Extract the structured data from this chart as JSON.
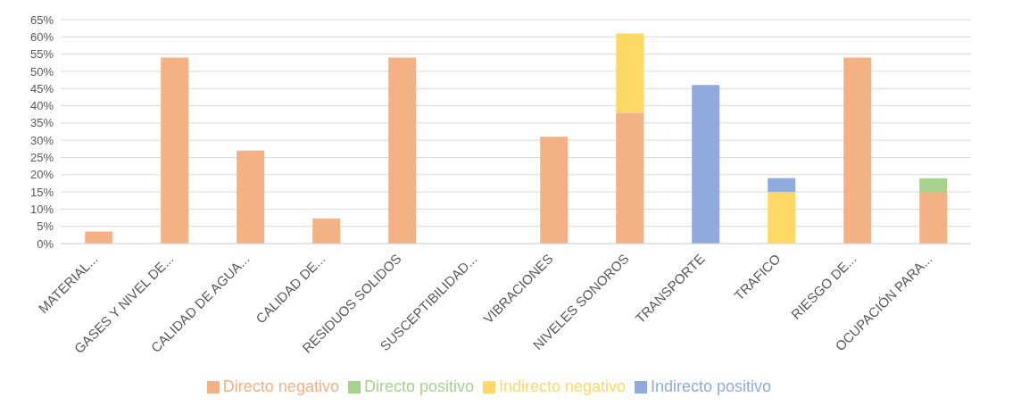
{
  "chart_data": {
    "type": "bar",
    "stacked": true,
    "categories": [
      "MATERIAL...",
      "GASES Y NIVEL DE...",
      "CALIDAD DE AGUA...",
      "CALIDAD DE...",
      "RESIDUOS SOLIDOS",
      "SUSCEPTIBILIDAD...",
      "VIBRACIONES",
      "NIVELES SONOROS",
      "TRANSPORTE",
      "TRAFICO",
      "RIESGO DE...",
      "OCUPACIÓN PARA..."
    ],
    "series": [
      {
        "name": "Directo negativo",
        "color": "#f4b183",
        "values": [
          3.5,
          54,
          27,
          7.3,
          54,
          null,
          31,
          38,
          null,
          null,
          54,
          15
        ]
      },
      {
        "name": "Directo positivo",
        "color": "#a9d18e",
        "values": [
          null,
          null,
          null,
          null,
          null,
          null,
          null,
          null,
          null,
          null,
          null,
          4
        ]
      },
      {
        "name": "Indirecto negativo",
        "color": "#ffd966",
        "values": [
          null,
          null,
          null,
          null,
          null,
          null,
          null,
          23,
          null,
          15,
          null,
          null
        ]
      },
      {
        "name": "Indirecto positivo",
        "color": "#8faadc",
        "values": [
          null,
          null,
          null,
          null,
          null,
          null,
          null,
          null,
          46,
          4,
          null,
          null
        ]
      }
    ],
    "ylim": [
      0,
      65
    ],
    "yticks": [
      {
        "value": 0,
        "label": "0%"
      },
      {
        "value": 5,
        "label": "5%"
      },
      {
        "value": 10,
        "label": "10%"
      },
      {
        "value": 15,
        "label": "15%"
      },
      {
        "value": 20,
        "label": "20%"
      },
      {
        "value": 25,
        "label": "25%"
      },
      {
        "value": 30,
        "label": "30%"
      },
      {
        "value": 35,
        "label": "35%"
      },
      {
        "value": 40,
        "label": "40%"
      },
      {
        "value": 45,
        "label": "45%"
      },
      {
        "value": 50,
        "label": "50%"
      },
      {
        "value": 55,
        "label": "55%"
      },
      {
        "value": 60,
        "label": "60%"
      },
      {
        "value": 65,
        "label": "65%"
      }
    ],
    "grid": "y",
    "legend": "bottom"
  }
}
